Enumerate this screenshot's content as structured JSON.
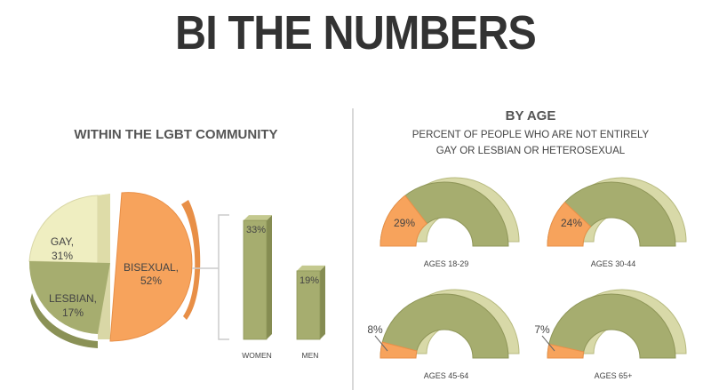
{
  "title": "BI THE NUMBERS",
  "colors": {
    "bisexual": "#f7a35c",
    "gay": "#efeec1",
    "lesbian": "#a6ad6f",
    "bar": "#a6ad6f",
    "arc": "#a6ad6f",
    "arc_highlight": "#f7a35c",
    "divider": "#cccccc"
  },
  "chart_data": [
    {
      "type": "pie",
      "title": "WITHIN THE LGBT COMMUNITY",
      "slices": [
        {
          "label": "BISEXUAL,",
          "value_text": "52%",
          "value": 52
        },
        {
          "label": "GAY,",
          "value_text": "31%",
          "value": 31
        },
        {
          "label": "LESBIAN,",
          "value_text": "17%",
          "value": 17
        }
      ]
    },
    {
      "type": "bar",
      "categories": [
        "WOMEN",
        "MEN"
      ],
      "values": [
        33,
        19
      ],
      "value_labels": [
        "33%",
        "19%"
      ],
      "ylim": [
        0,
        35
      ]
    },
    {
      "type": "pie",
      "title": "BY AGE",
      "subtitle_line1": "PERCENT OF PEOPLE WHO ARE NOT ENTIRELY",
      "subtitle_line2": "GAY OR LESBIAN OR HETEROSEXUAL",
      "groups": [
        {
          "label": "AGES 18-29",
          "value": 29,
          "value_text": "29%"
        },
        {
          "label": "AGES 30-44",
          "value": 24,
          "value_text": "24%"
        },
        {
          "label": "AGES 45-64",
          "value": 8,
          "value_text": "8%"
        },
        {
          "label": "AGES 65+",
          "value": 7,
          "value_text": "7%"
        }
      ]
    }
  ]
}
